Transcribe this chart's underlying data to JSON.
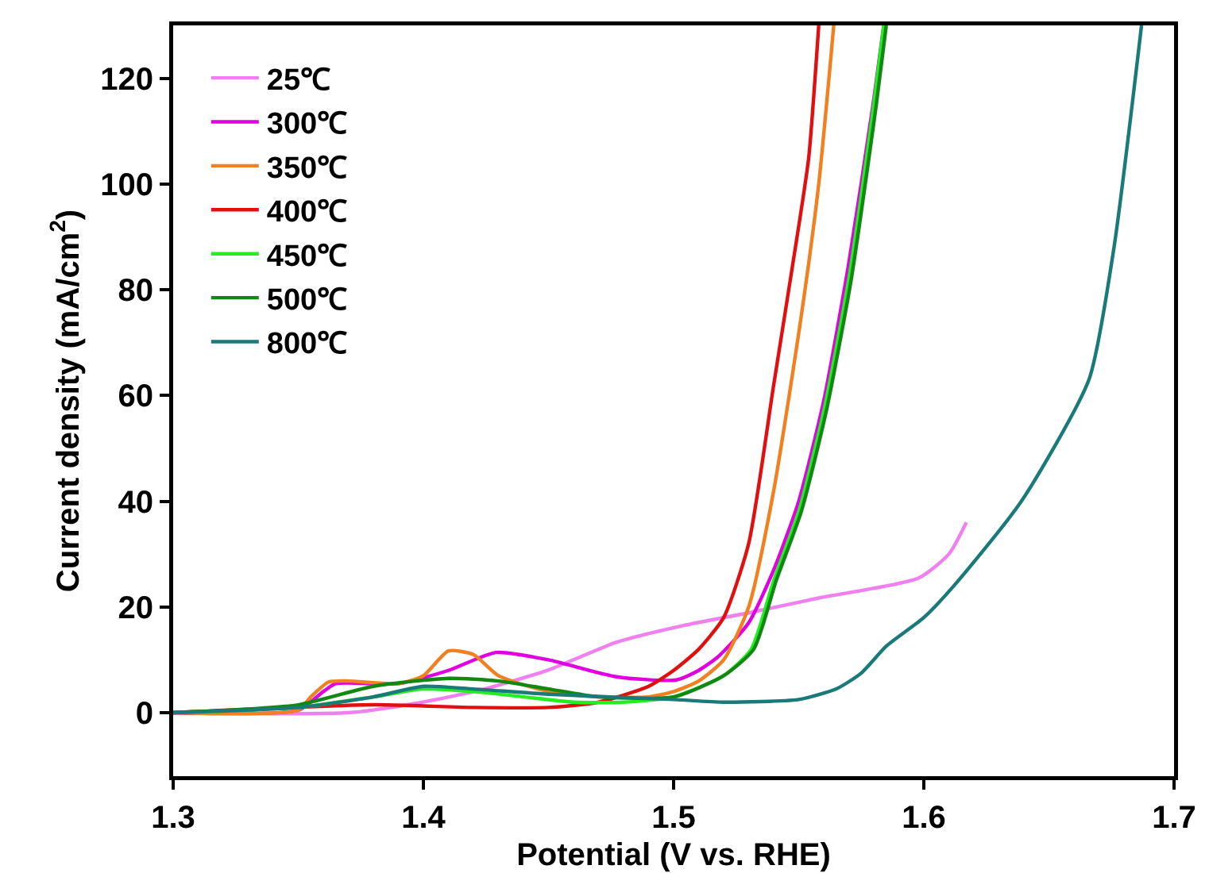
{
  "chart_data": {
    "type": "line",
    "xlabel": "Potential (V vs. RHE)",
    "ylabel": "Current density (mA/cm$^{2}$)",
    "xlim": [
      1.3,
      1.7
    ],
    "xticks": [
      1.3,
      1.4,
      1.5,
      1.6,
      1.7
    ],
    "ylim": [
      -12,
      130
    ],
    "yticks": [
      0,
      20,
      40,
      60,
      80,
      100,
      120
    ],
    "grid": false,
    "legend": "top left",
    "marker": "none",
    "line_style": "solid",
    "series": [
      {
        "name": "25℃",
        "color": "#f080f0",
        "x": [
          1.3,
          1.37,
          1.396,
          1.423,
          1.45,
          1.477,
          1.504,
          1.531,
          1.558,
          1.598,
          1.61,
          1.617
        ],
        "values": [
          0,
          0,
          1.7,
          4.3,
          8.1,
          13.3,
          16.5,
          19,
          21.7,
          25.5,
          30,
          36
        ]
      },
      {
        "name": "300℃",
        "color": "#e000e0",
        "x": [
          1.3,
          1.35,
          1.36,
          1.365,
          1.39,
          1.41,
          1.429,
          1.45,
          1.477,
          1.501,
          1.51,
          1.518,
          1.53,
          1.54,
          1.55,
          1.56,
          1.57,
          1.58,
          1.584
        ],
        "values": [
          0,
          0.5,
          4,
          5.5,
          5.5,
          8,
          11.4,
          10,
          6.8,
          6.2,
          8,
          10.7,
          17,
          27,
          40,
          59,
          85,
          116,
          130
        ]
      },
      {
        "name": "350℃",
        "color": "#f08020",
        "x": [
          1.3,
          1.35,
          1.355,
          1.362,
          1.37,
          1.39,
          1.4,
          1.41,
          1.42,
          1.43,
          1.45,
          1.47,
          1.49,
          1.5,
          1.51,
          1.52,
          1.53,
          1.54,
          1.551,
          1.558,
          1.564
        ],
        "values": [
          0,
          0.5,
          3,
          5.8,
          6,
          5.5,
          7,
          11.7,
          11,
          7,
          4,
          3,
          3,
          4,
          6,
          10,
          20,
          42,
          75,
          100,
          130
        ]
      },
      {
        "name": "400℃",
        "color": "#e01010",
        "x": [
          1.3,
          1.38,
          1.42,
          1.45,
          1.47,
          1.49,
          1.5,
          1.51,
          1.52,
          1.53,
          1.54,
          1.55,
          1.554,
          1.558
        ],
        "values": [
          0,
          1.5,
          1,
          1,
          2,
          5,
          8,
          12,
          18,
          32,
          62,
          92,
          105,
          130
        ]
      },
      {
        "name": "450℃",
        "color": "#22ee22",
        "x": [
          1.3,
          1.35,
          1.38,
          1.4,
          1.42,
          1.44,
          1.46,
          1.48,
          1.5,
          1.52,
          1.531,
          1.54,
          1.55,
          1.56,
          1.57,
          1.58,
          1.584
        ],
        "values": [
          0,
          1,
          3,
          4.5,
          4,
          3,
          2,
          2,
          3,
          7,
          12,
          25,
          38,
          57,
          82,
          115,
          130
        ]
      },
      {
        "name": "500℃",
        "color": "#118811",
        "x": [
          1.3,
          1.35,
          1.38,
          1.41,
          1.43,
          1.45,
          1.47,
          1.5,
          1.52,
          1.532,
          1.541,
          1.551,
          1.561,
          1.571,
          1.581,
          1.585
        ],
        "values": [
          0,
          1.5,
          5,
          6.5,
          6,
          4.5,
          3,
          3,
          7,
          12,
          25,
          38,
          57,
          82,
          115,
          130
        ]
      },
      {
        "name": "800℃",
        "color": "#1a7a7a",
        "x": [
          1.3,
          1.35,
          1.38,
          1.4,
          1.42,
          1.45,
          1.5,
          1.52,
          1.55,
          1.565,
          1.575,
          1.585,
          1.6,
          1.612,
          1.639,
          1.666,
          1.676,
          1.687
        ],
        "values": [
          0,
          1,
          3,
          5,
          4.5,
          3.5,
          2.5,
          2,
          2.5,
          4.5,
          7.5,
          12.6,
          18,
          24,
          40,
          63,
          88,
          130
        ]
      }
    ]
  }
}
